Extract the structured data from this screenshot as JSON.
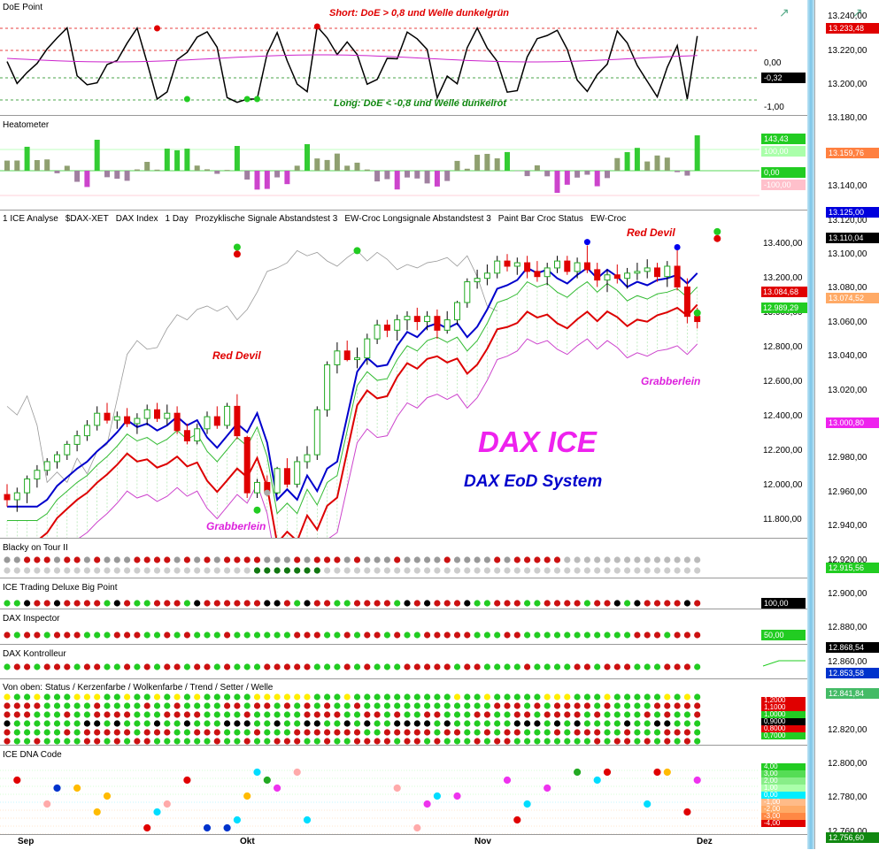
{
  "panels": {
    "doe": {
      "title": "DoE Point",
      "note_short": "Short: DoE > 0,8 und Welle dunkelgrün",
      "note_long": "Long: DoE < -0,8 und Welle dunkelrot",
      "axis_labels": [
        "0,00",
        "-1,00"
      ],
      "current": "-0,32"
    },
    "heat": {
      "title": "Heatometer",
      "labels": [
        {
          "text": "143,43",
          "color": "#22cc22"
        },
        {
          "text": "100,00",
          "color": "#aaffaa"
        },
        {
          "text": "0,00",
          "color": "#22cc22"
        },
        {
          "text": "-100,00",
          "color": "#ffc0cb"
        }
      ]
    },
    "main": {
      "toolbar": [
        "1 ICE Analyse",
        "$DAX-XET",
        "DAX Index",
        "1 Day",
        "Prozyklische Signale Abstandstest 3",
        "EW-Croc Longsignale Abstandstest 3",
        "Paint Bar Croc Status",
        "EW-Croc"
      ],
      "brand": "DAX ICE",
      "subtitle": "DAX EoD System",
      "annotations": [
        "Red Devil",
        "Red Devil",
        "Grabberlein",
        "Grabberlein"
      ],
      "tags": [
        {
          "text": "13.084,68",
          "color": "#e00000"
        },
        {
          "text": "12.989,29",
          "color": "#22cc22"
        }
      ]
    },
    "blacky": {
      "title": "Blacky on Tour II"
    },
    "bigpoint": {
      "title": "ICE Trading Deluxe Big Point",
      "value": "100,00"
    },
    "inspector": {
      "title": "DAX Inspector",
      "value": "50,00"
    },
    "kontrolleur": {
      "title": "DAX Kontrolleur"
    },
    "status": {
      "title": "Von oben: Status / Kerzenfarbe / Wolkenfarbe / Trend / Setter / Welle",
      "values": [
        {
          "text": "1,2000",
          "color": "#e00000"
        },
        {
          "text": "1,1000",
          "color": "#e00000"
        },
        {
          "text": "1,0000",
          "color": "#22cc22"
        },
        {
          "text": "0,9000",
          "color": "#000000"
        },
        {
          "text": "0,8000",
          "color": "#e00000"
        },
        {
          "text": "0,7000",
          "color": "#22cc22"
        }
      ]
    },
    "dna": {
      "title": "ICE DNA Code",
      "values": [
        {
          "text": "4,00",
          "color": "#22cc22"
        },
        {
          "text": "3,00",
          "color": "#55dd55"
        },
        {
          "text": "2,00",
          "color": "#88ee88"
        },
        {
          "text": "1,00",
          "color": "#aaffaa"
        },
        {
          "text": "0,00",
          "color": "#00eeff"
        },
        {
          "text": "-1,00",
          "color": "#ffbb88"
        },
        {
          "text": "-2,00",
          "color": "#ffaa66"
        },
        {
          "text": "-3,00",
          "color": "#ff8844"
        },
        {
          "text": "-4,00",
          "color": "#e00000"
        }
      ]
    }
  },
  "chart_data": {
    "type": "candlestick",
    "x_labels": [
      "Sep",
      "Okt",
      "Nov",
      "Dez"
    ],
    "main_axis": [
      "13.400,00",
      "13.200,00",
      "13.000,00",
      "12.800,00",
      "12.600,00",
      "12.400,00",
      "12.200,00",
      "12.000,00",
      "11.800,00"
    ],
    "right_axis": [
      "13.240,00",
      "13.220,00",
      "13.200,00",
      "13.180,00",
      "13.160,00",
      "13.140,00",
      "13.120,00",
      "13.100,00",
      "13.080,00",
      "13.060,00",
      "13.040,00",
      "13.020,00",
      "13.000,00",
      "12.980,00",
      "12.960,00",
      "12.940,00",
      "12.920,00",
      "12.900,00",
      "12.880,00",
      "12.860,00",
      "12.840,00",
      "12.820,00",
      "12.800,00",
      "12.780,00",
      "12.760,00"
    ],
    "right_tags": [
      {
        "text": "13.233,48",
        "color": "#e00000",
        "v": 13233.48
      },
      {
        "text": "13.159,76",
        "color": "#ff8040",
        "v": 13159.76
      },
      {
        "text": "13.125,00",
        "color": "#0000dd",
        "v": 13125
      },
      {
        "text": "13.110,04",
        "color": "#000000",
        "v": 13110.04
      },
      {
        "text": "13.074,52",
        "color": "#ffaa66",
        "v": 13074.52
      },
      {
        "text": "13.000,80",
        "color": "#ee22ee",
        "v": 13000.8
      },
      {
        "text": "12.915,56",
        "color": "#22cc22",
        "v": 12915.56
      },
      {
        "text": "12.868,54",
        "color": "#000000",
        "v": 12868.54
      },
      {
        "text": "12.853,58",
        "color": "#0033cc",
        "v": 12853.58
      },
      {
        "text": "12.841,84",
        "color": "#44bb66",
        "v": 12841.84
      },
      {
        "text": "12.756,60",
        "color": "#118811",
        "v": 12756.6
      }
    ],
    "candles": [
      [
        11950,
        12010,
        11880,
        11920
      ],
      [
        11920,
        11990,
        11850,
        11960
      ],
      [
        11960,
        12060,
        11900,
        12040
      ],
      [
        12040,
        12120,
        11990,
        12090
      ],
      [
        12090,
        12160,
        12060,
        12140
      ],
      [
        12140,
        12200,
        12100,
        12180
      ],
      [
        12180,
        12260,
        12150,
        12240
      ],
      [
        12240,
        12320,
        12200,
        12290
      ],
      [
        12290,
        12380,
        12260,
        12350
      ],
      [
        12350,
        12460,
        12320,
        12420
      ],
      [
        12420,
        12480,
        12360,
        12380
      ],
      [
        12380,
        12430,
        12330,
        12400
      ],
      [
        12400,
        12450,
        12340,
        12360
      ],
      [
        12360,
        12420,
        12300,
        12390
      ],
      [
        12390,
        12470,
        12350,
        12440
      ],
      [
        12440,
        12480,
        12370,
        12390
      ],
      [
        12390,
        12470,
        12350,
        12420
      ],
      [
        12420,
        12460,
        12300,
        12320
      ],
      [
        12320,
        12360,
        12240,
        12260
      ],
      [
        12260,
        12360,
        12240,
        12330
      ],
      [
        12330,
        12430,
        12300,
        12400
      ],
      [
        12400,
        12460,
        12330,
        12350
      ],
      [
        12350,
        12480,
        12330,
        12460
      ],
      [
        12460,
        12530,
        12270,
        12290
      ],
      [
        12280,
        12290,
        11930,
        11960
      ],
      [
        11960,
        12040,
        11930,
        12020
      ],
      [
        12020,
        12060,
        11940,
        11960
      ],
      [
        11960,
        12110,
        11950,
        12100
      ],
      [
        12100,
        12160,
        11990,
        12010
      ],
      [
        12010,
        12170,
        11990,
        12140
      ],
      [
        12140,
        12230,
        12100,
        12180
      ],
      [
        12180,
        12460,
        12150,
        12440
      ],
      [
        12440,
        12720,
        12400,
        12700
      ],
      [
        12700,
        12830,
        12650,
        12780
      ],
      [
        12780,
        12840,
        12720,
        12730
      ],
      [
        12730,
        12800,
        12680,
        12740
      ],
      [
        12740,
        12880,
        12700,
        12850
      ],
      [
        12850,
        12960,
        12820,
        12930
      ],
      [
        12930,
        12960,
        12860,
        12900
      ],
      [
        12900,
        12990,
        12840,
        12960
      ],
      [
        12960,
        13010,
        12900,
        12980
      ],
      [
        12980,
        13030,
        12900,
        12950
      ],
      [
        12950,
        13010,
        12900,
        12980
      ],
      [
        12980,
        13020,
        12850,
        12900
      ],
      [
        12900,
        13010,
        12880,
        12960
      ],
      [
        12960,
        13070,
        12930,
        13060
      ],
      [
        13060,
        13200,
        13030,
        13180
      ],
      [
        13180,
        13250,
        13140,
        13200
      ],
      [
        13200,
        13280,
        13160,
        13230
      ],
      [
        13230,
        13330,
        13200,
        13300
      ],
      [
        13300,
        13340,
        13240,
        13270
      ],
      [
        13270,
        13320,
        13220,
        13290
      ],
      [
        13290,
        13330,
        13200,
        13240
      ],
      [
        13240,
        13300,
        13180,
        13210
      ],
      [
        13210,
        13290,
        13160,
        13260
      ],
      [
        13260,
        13330,
        13230,
        13300
      ],
      [
        13300,
        13330,
        13220,
        13240
      ],
      [
        13240,
        13320,
        13200,
        13290
      ],
      [
        13290,
        13390,
        13230,
        13250
      ],
      [
        13250,
        13290,
        13150,
        13190
      ],
      [
        13190,
        13250,
        13120,
        13220
      ],
      [
        13220,
        13280,
        13170,
        13200
      ],
      [
        13200,
        13260,
        13140,
        13230
      ],
      [
        13230,
        13290,
        13190,
        13240
      ],
      [
        13240,
        13310,
        13200,
        13260
      ],
      [
        13260,
        13290,
        13180,
        13210
      ],
      [
        13210,
        13300,
        13150,
        13270
      ],
      [
        13270,
        13380,
        13130,
        13150
      ],
      [
        13150,
        13200,
        12940,
        12980
      ],
      [
        12980,
        13030,
        12910,
        12950
      ]
    ]
  }
}
